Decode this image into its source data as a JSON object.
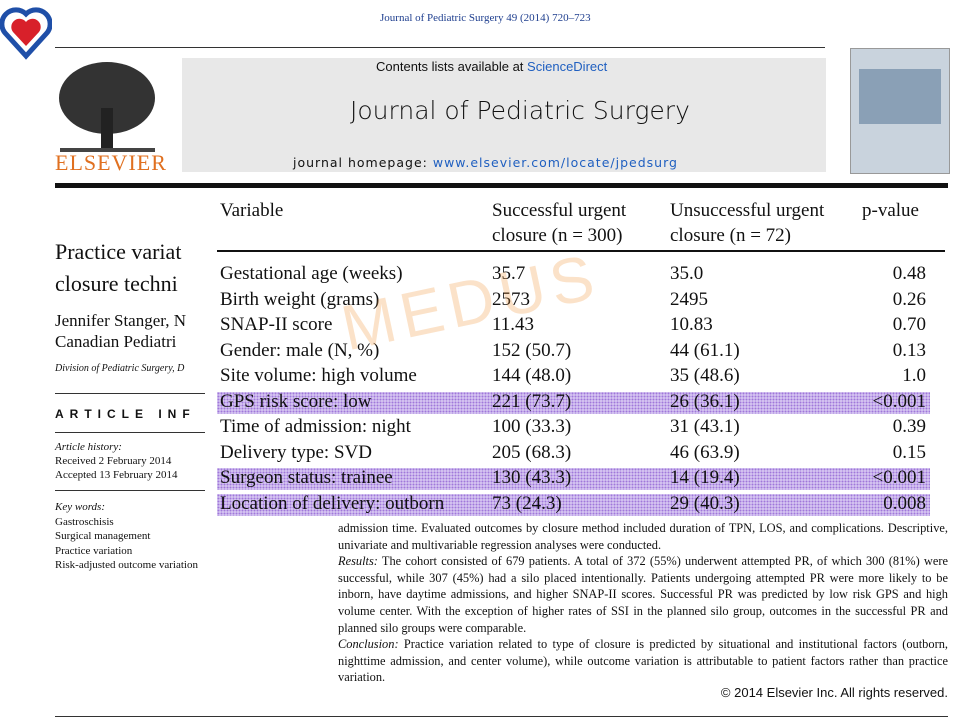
{
  "header": {
    "citation": "Journal of Pediatric Surgery 49 (2014) 720–723",
    "contents_prefix": "Contents lists available at",
    "contents_link": "ScienceDirect",
    "journal": "Journal of Pediatric Surgery",
    "homepage_label": "journal homepage:",
    "homepage_url": "www.elsevier.com/locate/jpedsurg",
    "publisher": "ELSEVIER"
  },
  "article": {
    "title_lines": [
      "Practice variat",
      "closure techni"
    ],
    "author_lines": [
      "Jennifer Stanger, N",
      "Canadian Pediatri"
    ],
    "affiliation": "Division of Pediatric Surgery, D",
    "info_heading": "ARTICLE INF",
    "history_label": "Article history:",
    "received": "Received 2 February 2014",
    "accepted": "Accepted 13 February 2014",
    "keywords_label": "Key words:",
    "keywords": [
      "Gastroschisis",
      "Surgical management",
      "Practice variation",
      "Risk-adjusted outcome variation"
    ]
  },
  "table": {
    "headers": [
      "Variable",
      "Successful urgent\nclosure (n = 300)",
      "Unsuccessful urgent\nclosure (n = 72)",
      "p-value"
    ],
    "rows": [
      {
        "cells": [
          "Gestational age (weeks)",
          "35.7",
          "35.0",
          "0.48"
        ],
        "highlighted": false
      },
      {
        "cells": [
          "Birth weight (grams)",
          "2573",
          "2495",
          "0.26"
        ],
        "highlighted": false
      },
      {
        "cells": [
          "SNAP-II score",
          "11.43",
          "10.83",
          "0.70"
        ],
        "highlighted": false
      },
      {
        "cells": [
          "Gender: male (N, %)",
          "152 (50.7)",
          "44 (61.1)",
          "0.13"
        ],
        "highlighted": false
      },
      {
        "cells": [
          "Site volume: high volume",
          "144 (48.0)",
          "35 (48.6)",
          "1.0"
        ],
        "highlighted": false
      },
      {
        "cells": [
          "GPS risk score: low",
          "221 (73.7)",
          "26 (36.1)",
          "<0.001"
        ],
        "highlighted": true
      },
      {
        "cells": [
          "Time of admission: night",
          "100 (33.3)",
          "31 (43.1)",
          "0.39"
        ],
        "highlighted": false
      },
      {
        "cells": [
          "Delivery type: SVD",
          "205 (68.3)",
          "46 (63.9)",
          "0.15"
        ],
        "highlighted": false
      },
      {
        "cells": [
          "Surgeon status: trainee",
          "130 (43.3)",
          "14 (19.4)",
          "<0.001"
        ],
        "highlighted": true
      },
      {
        "cells": [
          "Location of delivery: outborn",
          "73 (24.3)",
          "29 (40.3)",
          "0.008"
        ],
        "highlighted": true
      }
    ]
  },
  "watermark": "MEDUS",
  "abstract": {
    "methods_tail": "admission time. Evaluated outcomes by closure method included duration of TPN, LOS, and complications. Descriptive, univariate and multivariable regression analyses were conducted.",
    "results_label": "Results:",
    "results": "The cohort consisted of 679 patients. A total of 372 (55%) underwent attempted PR, of which 300 (81%) were successful, while 307 (45%) had a silo placed intentionally. Patients undergoing attempted PR were more likely to be inborn, have daytime admissions, and higher SNAP-II scores. Successful PR was predicted by low risk GPS and high volume center. With the exception of higher rates of SSI in the planned silo group, outcomes in the successful PR and planned silo groups were comparable.",
    "conclusion_label": "Conclusion:",
    "conclusion": "Practice variation related to type of closure is predicted by situational and institutional factors (outborn, nighttime admission, and center volume), while outcome variation is attributable to patient factors rather than practice variation.",
    "copyright": "© 2014 Elsevier Inc. All rights reserved."
  }
}
